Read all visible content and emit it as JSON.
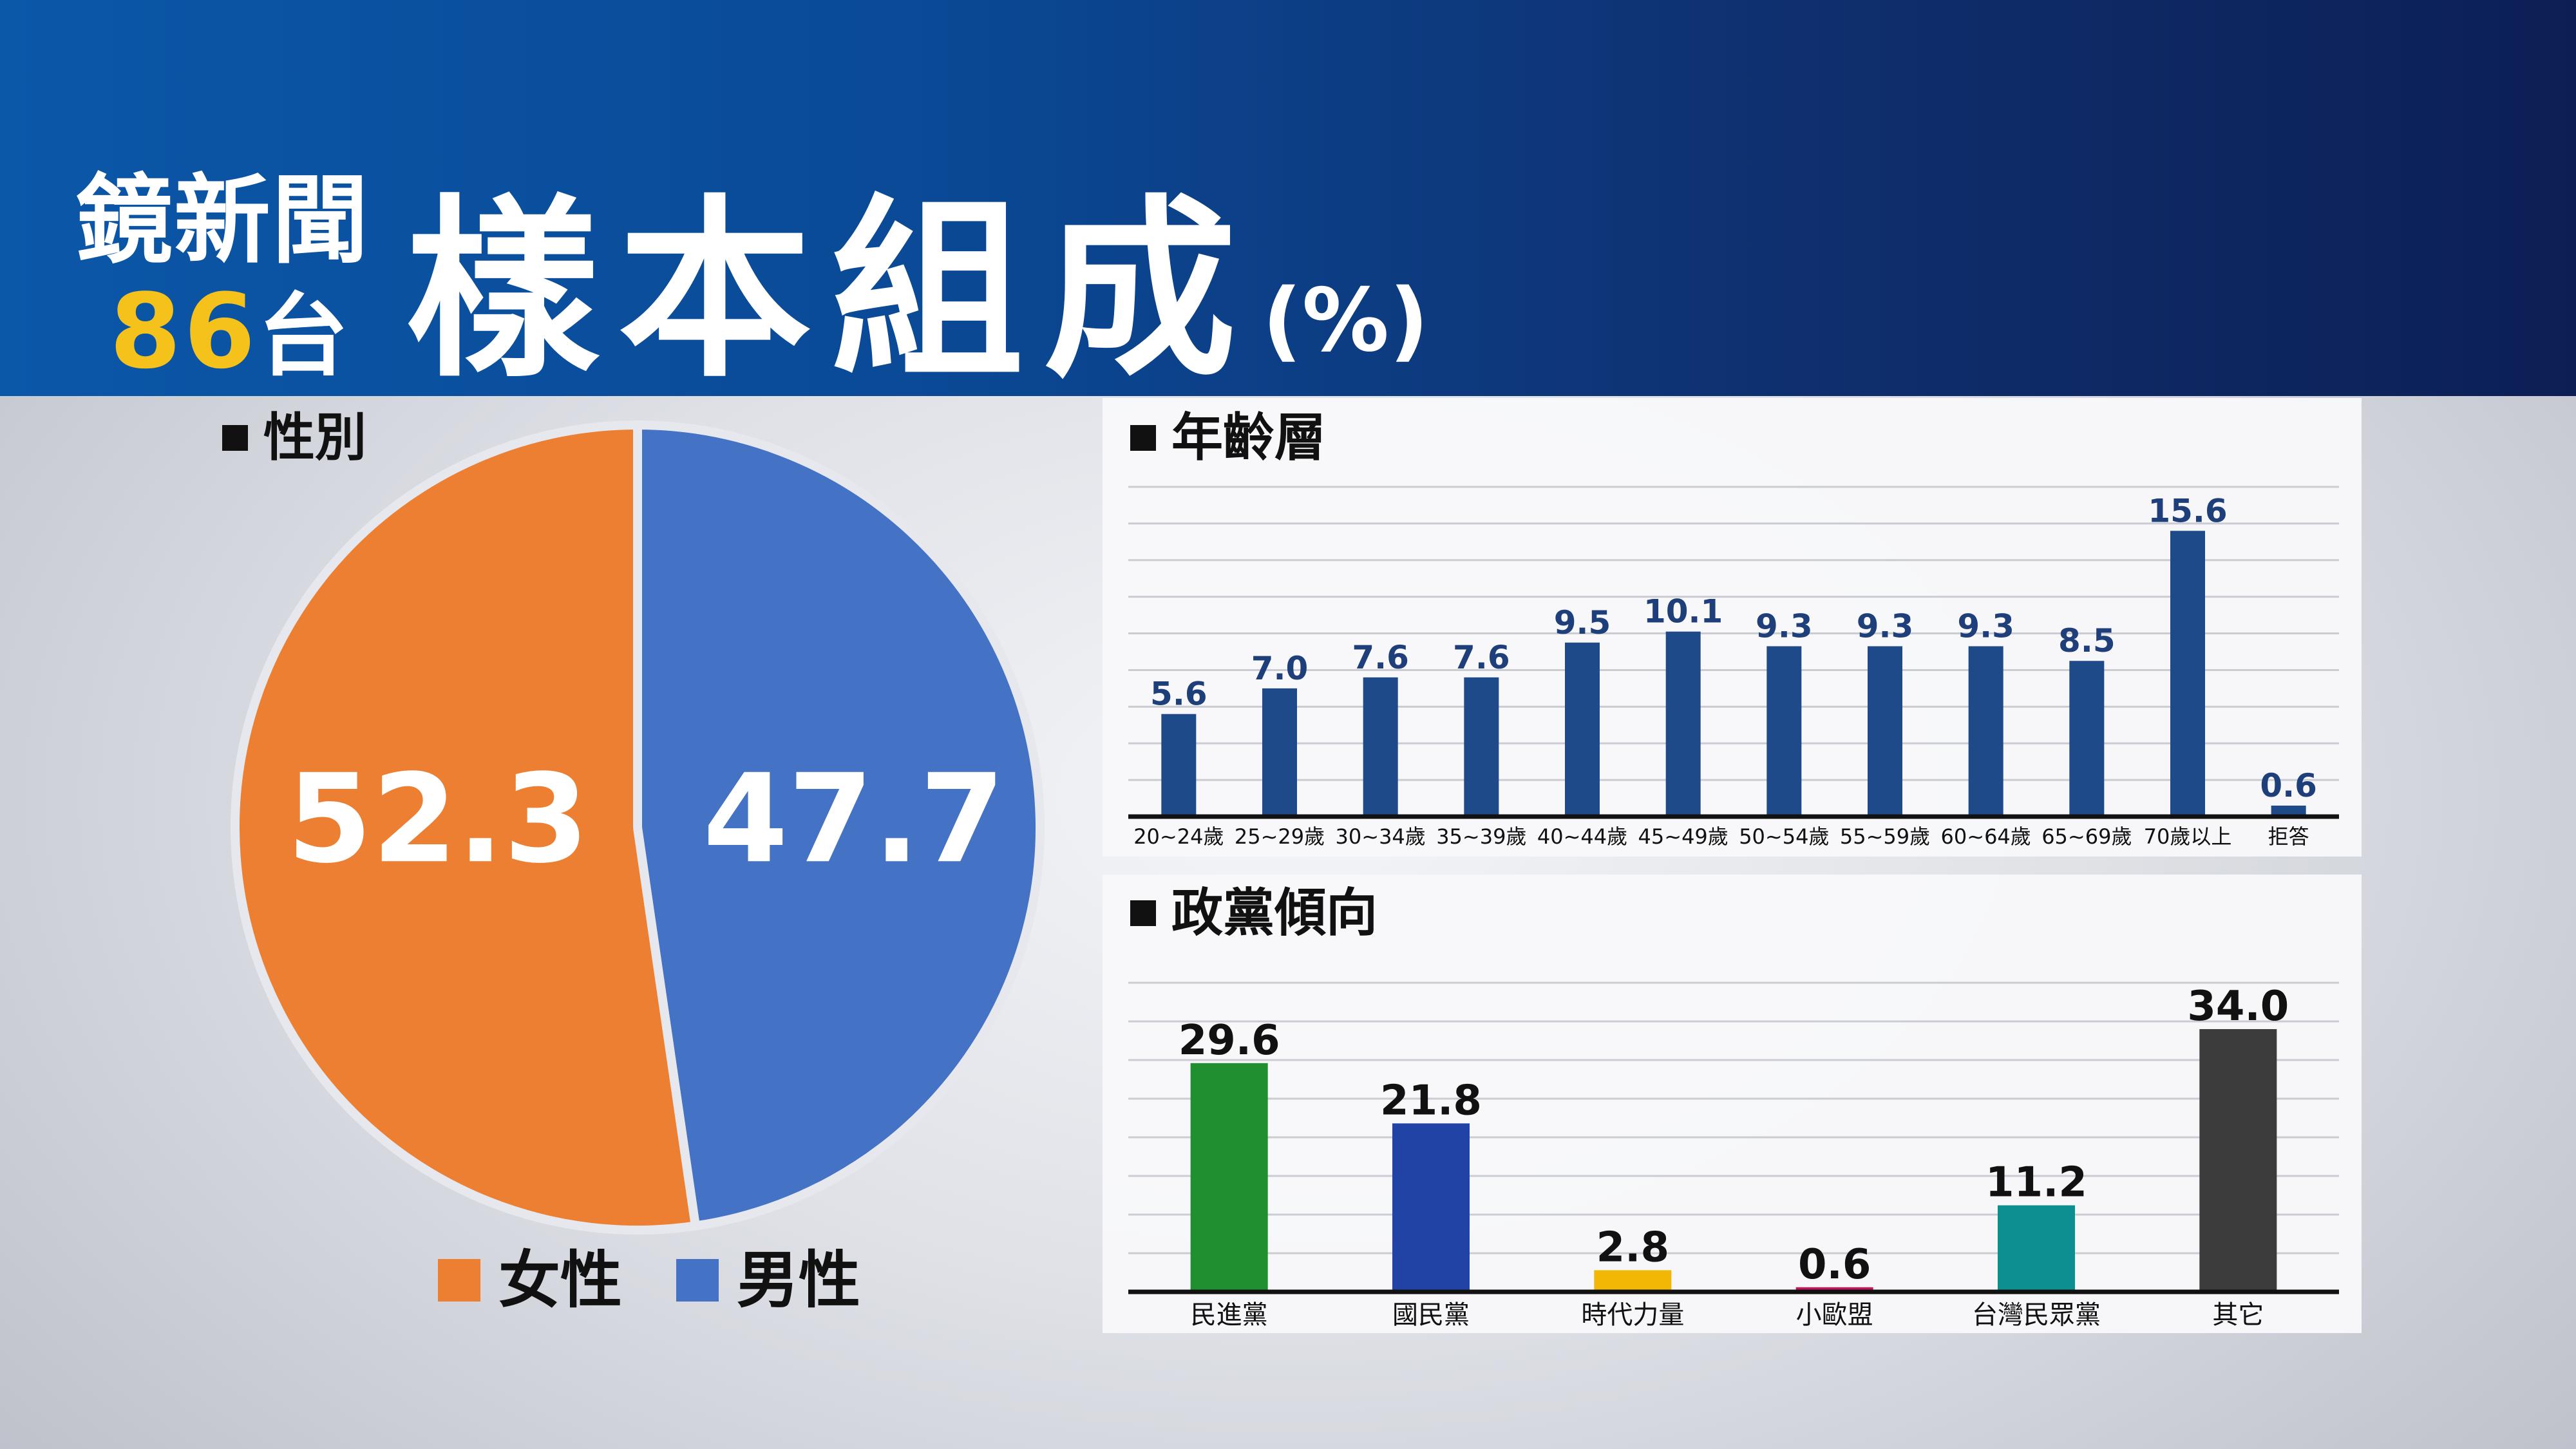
{
  "header": {
    "logo_line1": "鏡新聞",
    "logo_num": "86",
    "logo_tai": "台",
    "title": "樣本組成",
    "unit": "(%)"
  },
  "colors": {
    "female": "#ed7f32",
    "male": "#4472c4",
    "age_bar": "#1f4a8a",
    "age_label": "#1f3f7a"
  },
  "chart_data": [
    {
      "type": "pie",
      "title": "性別",
      "categories": [
        "女性",
        "男性"
      ],
      "values": [
        52.3,
        47.7
      ],
      "colors": [
        "#ed7f32",
        "#4472c4"
      ],
      "legend_position": "bottom"
    },
    {
      "type": "bar",
      "title": "年齡層",
      "categories": [
        "20~24歲",
        "25~29歲",
        "30~34歲",
        "35~39歲",
        "40~44歲",
        "45~49歲",
        "50~54歲",
        "55~59歲",
        "60~64歲",
        "65~69歲",
        "70歲以上",
        "拒答"
      ],
      "values": [
        5.6,
        7.0,
        7.6,
        7.6,
        9.5,
        10.1,
        9.3,
        9.3,
        9.3,
        8.5,
        15.6,
        0.6
      ],
      "ylim": [
        0,
        18
      ],
      "grid": true
    },
    {
      "type": "bar",
      "title": "政黨傾向",
      "categories": [
        "民進黨",
        "國民黨",
        "時代力量",
        "小歐盟",
        "台灣民眾黨",
        "其它"
      ],
      "values": [
        29.6,
        21.8,
        2.8,
        0.6,
        11.2,
        34.0
      ],
      "colors": [
        "#1f8f2f",
        "#2243a6",
        "#f2b705",
        "#c2185b",
        "#0e8f8f",
        "#3c3c3c"
      ],
      "ylim": [
        0,
        40
      ],
      "grid": true
    }
  ]
}
